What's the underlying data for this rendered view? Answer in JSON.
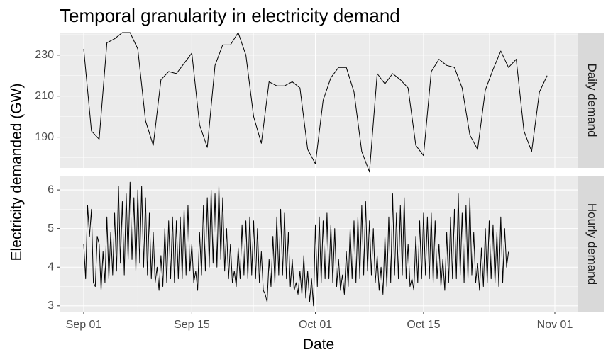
{
  "chart_data": {
    "type": "line",
    "title": "Temporal granularity in electricity demand",
    "xlabel": "Date",
    "ylabel": "Electricity demanded (GW)",
    "grid": true,
    "x_ticks": [
      "Sep 01",
      "Sep 15",
      "Oct 01",
      "Oct 15",
      "Nov 01"
    ],
    "panels": [
      {
        "strip": "Daily demand",
        "ylim": [
          175,
          241
        ],
        "y_ticks": [
          190,
          210,
          230
        ],
        "series": [
          {
            "x_start": "2024-09-01",
            "x_step_days": 1,
            "values": [
              233,
              193,
              189,
              236,
              238,
              241,
              241,
              233,
              198,
              186,
              218,
              222,
              221,
              226,
              231,
              196,
              185,
              225,
              235,
              235,
              241,
              230,
              200,
              187,
              217,
              215,
              215,
              217,
              214,
              184,
              177,
              208,
              219,
              224,
              224,
              212,
              183,
              173,
              221,
              216,
              221,
              218,
              214,
              186,
              181,
              222,
              228,
              225,
              224,
              214,
              191,
              184,
              213,
              223,
              232,
              224,
              228,
              193,
              183,
              212,
              220
            ]
          }
        ]
      },
      {
        "strip": "Hourly demand",
        "ylim": [
          2.85,
          6.35
        ],
        "y_ticks": [
          3,
          4,
          5,
          6
        ],
        "series": [
          {
            "x_start": "2024-09-01 00:00",
            "x_step_hours": 6,
            "values": [
              4.6,
              3.7,
              5.6,
              4.8,
              5.5,
              3.6,
              3.5,
              4.8,
              4.6,
              3.4,
              4.4,
              3.6,
              5.3,
              3.7,
              4.9,
              3.8,
              5.4,
              3.9,
              6.1,
              4.1,
              5.7,
              3.8,
              5.9,
              4.2,
              6.2,
              4.2,
              5.8,
              3.9,
              6.0,
              4.1,
              6.1,
              4.0,
              5.8,
              3.8,
              5.4,
              3.7,
              4.9,
              3.6,
              4.0,
              3.4,
              4.3,
              3.5,
              5.0,
              3.6,
              5.2,
              3.7,
              5.3,
              3.6,
              5.2,
              3.7,
              5.3,
              3.7,
              5.5,
              3.8,
              5.6,
              3.9,
              4.6,
              3.6,
              3.9,
              3.4,
              4.9,
              3.8,
              5.6,
              3.9,
              5.8,
              4.0,
              6.0,
              4.1,
              5.9,
              4.0,
              6.1,
              4.2,
              5.8,
              3.9,
              5.0,
              3.7,
              4.6,
              3.6,
              3.9,
              3.5,
              4.5,
              3.7,
              5.1,
              3.8,
              5.2,
              3.7,
              5.3,
              3.8,
              5.2,
              3.7,
              5.0,
              3.6,
              4.4,
              3.4,
              3.3,
              3.1,
              4.2,
              3.5,
              4.8,
              3.6,
              5.3,
              3.8,
              5.5,
              3.8,
              5.4,
              3.7,
              4.9,
              3.5,
              4.2,
              3.4,
              3.6,
              3.3,
              3.9,
              3.3,
              4.3,
              3.2,
              3.9,
              3.1,
              3.7,
              3.0,
              5.1,
              3.5,
              5.3,
              3.6,
              5.2,
              3.7,
              5.4,
              3.7,
              5.1,
              3.6,
              5.0,
              3.5,
              4.2,
              3.4,
              3.8,
              3.3,
              4.4,
              3.5,
              5.0,
              3.7,
              5.2,
              3.6,
              5.3,
              3.7,
              5.6,
              3.8,
              5.7,
              3.9,
              5.2,
              3.8,
              5.0,
              3.6,
              4.3,
              3.4,
              4.0,
              3.3,
              4.8,
              3.5,
              5.3,
              3.6,
              5.9,
              3.8,
              5.4,
              3.7,
              5.6,
              3.8,
              5.8,
              3.7,
              4.6,
              3.5,
              3.7,
              3.4,
              4.8,
              3.6,
              5.2,
              3.7,
              5.4,
              3.8,
              5.3,
              3.7,
              5.4,
              3.6,
              5.2,
              3.7,
              4.6,
              3.5,
              4.2,
              3.4,
              4.9,
              3.6,
              5.3,
              3.7,
              5.5,
              3.7,
              5.9,
              3.8,
              5.4,
              3.6,
              5.6,
              3.7,
              5.8,
              3.8,
              4.9,
              3.6,
              4.1,
              3.4,
              4.5,
              3.5,
              5.0,
              3.6,
              5.2,
              3.7,
              5.1,
              3.6,
              4.9,
              3.5,
              5.3,
              3.6,
              5.0,
              4.0,
              4.4
            ]
          }
        ]
      }
    ]
  }
}
